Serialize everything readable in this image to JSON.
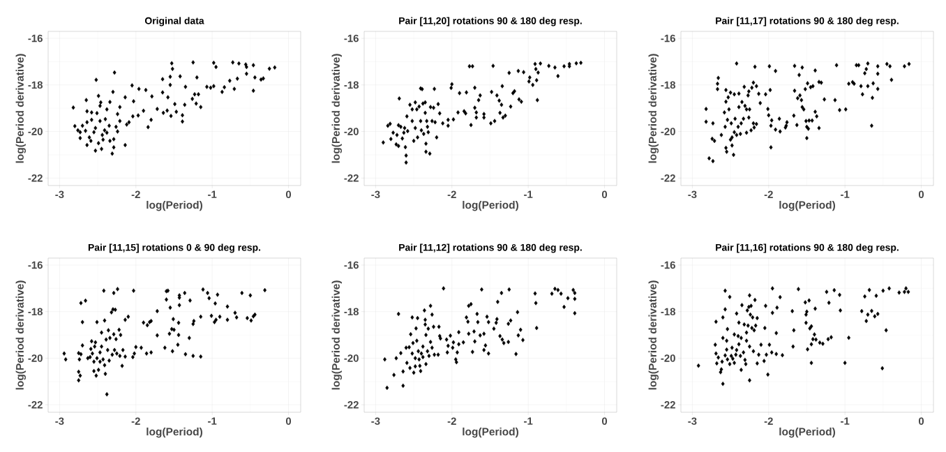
{
  "chart_data": [
    {
      "type": "scatter",
      "title": "Original data",
      "xlabel": "log(Period)",
      "ylabel": "log(Period derivative)",
      "color": "#000000",
      "marker": "diamond",
      "grid": true,
      "xlim": [
        -3.15,
        0.16
      ],
      "ylim": [
        -22.32,
        -15.7
      ],
      "xticks": [
        -3,
        -2,
        -1,
        0
      ],
      "yticks": [
        -22,
        -20,
        -18,
        -16
      ],
      "x": [
        -2.82,
        -2.8,
        -2.76,
        -2.73,
        -2.73,
        -2.7,
        -2.66,
        -2.65,
        -2.64,
        -2.64,
        -2.64,
        -2.61,
        -2.58,
        -2.58,
        -2.59,
        -2.55,
        -2.52,
        -2.51,
        -2.53,
        -2.53,
        -2.49,
        -2.49,
        -2.47,
        -2.46,
        -2.47,
        -2.45,
        -2.44,
        -2.43,
        -2.41,
        -2.4,
        -2.38,
        -2.38,
        -2.35,
        -2.34,
        -2.34,
        -2.31,
        -2.3,
        -2.29,
        -2.29,
        -2.28,
        -2.26,
        -2.24,
        -2.24,
        -2.21,
        -2.21,
        -2.14,
        -2.14,
        -2.12,
        -2.09,
        -2.05,
        -2.04,
        -2.03,
        -1.97,
        -1.96,
        -1.9,
        -1.87,
        -1.84,
        -1.8,
        -1.79,
        -1.72,
        -1.65,
        -1.65,
        -1.64,
        -1.59,
        -1.58,
        -1.55,
        -1.55,
        -1.54,
        -1.53,
        -1.52,
        -1.49,
        -1.47,
        -1.42,
        -1.39,
        -1.39,
        -1.36,
        -1.35,
        -1.26,
        -1.25,
        -1.23,
        -1.21,
        -1.2,
        -1.18,
        -1.15,
        -1.07,
        -1.02,
        -0.98,
        -0.98,
        -0.95,
        -0.87,
        -0.84,
        -0.77,
        -0.73,
        -0.71,
        -0.67,
        -0.65,
        -0.56,
        -0.55,
        -0.55,
        -0.46,
        -0.46,
        -0.44,
        -0.36,
        -0.33,
        -0.25,
        -0.18
      ],
      "values": [
        -18.97,
        -19.77,
        -19.95,
        -20.03,
        -20.28,
        -19.75,
        -19.97,
        -18.65,
        -19.13,
        -19.6,
        -20.58,
        -20.25,
        -19.18,
        -19.5,
        -20.4,
        -20.03,
        -17.78,
        -19.21,
        -19.85,
        -20.82,
        -18.47,
        -20.5,
        -18.9,
        -18.75,
        -19.55,
        -20.75,
        -20.15,
        -20.35,
        -19.95,
        -19.47,
        -20.05,
        -19.05,
        -19.75,
        -18.73,
        -20.4,
        -20.95,
        -18.3,
        -20.33,
        -20.68,
        -17.47,
        -19.8,
        -19.25,
        -20.0,
        -19.55,
        -18.95,
        -18.53,
        -20.58,
        -19.7,
        -19.6,
        -18.02,
        -19.35,
        -18.7,
        -19.31,
        -18.17,
        -19.11,
        -18.22,
        -19.81,
        -19.5,
        -18.49,
        -19.03,
        -17.75,
        -18.32,
        -19.2,
        -19.1,
        -18.53,
        -18.0,
        -17.65,
        -19.33,
        -17.07,
        -17.31,
        -18.82,
        -19.15,
        -17.63,
        -19.3,
        -19.57,
        -18.85,
        -18.08,
        -18.6,
        -17.03,
        -18.4,
        -18.8,
        -17.68,
        -18.4,
        -18.95,
        -18.08,
        -18.12,
        -18.05,
        -17.05,
        -17.23,
        -18.3,
        -18.1,
        -17.82,
        -17.03,
        -18.17,
        -17.73,
        -17.08,
        -17.12,
        -17.23,
        -17.52,
        -18.25,
        -17.15,
        -17.68,
        -17.77,
        -17.72,
        -17.3,
        -17.25
      ]
    },
    {
      "type": "scatter",
      "title": "Pair [11,20] rotations 90 & 180 deg resp.",
      "xlabel": "log(Period)",
      "ylabel": "log(Period derivative)",
      "color": "#000000",
      "marker": "diamond",
      "grid": true,
      "xlim": [
        -3.15,
        0.16
      ],
      "ylim": [
        -22.32,
        -15.7
      ],
      "xticks": [
        -3,
        -2,
        -1,
        0
      ],
      "yticks": [
        -22,
        -20,
        -18,
        -16
      ],
      "x": [
        -2.9,
        -2.84,
        -2.81,
        -2.8,
        -2.77,
        -2.73,
        -2.72,
        -2.7,
        -2.7,
        -2.69,
        -2.67,
        -2.65,
        -2.63,
        -2.62,
        -2.61,
        -2.6,
        -2.6,
        -2.59,
        -2.58,
        -2.55,
        -2.52,
        -2.52,
        -2.5,
        -2.48,
        -2.48,
        -2.46,
        -2.45,
        -2.43,
        -2.41,
        -2.41,
        -2.4,
        -2.39,
        -2.38,
        -2.37,
        -2.35,
        -2.35,
        -2.34,
        -2.34,
        -2.33,
        -2.32,
        -2.31,
        -2.29,
        -2.28,
        -2.26,
        -2.24,
        -2.23,
        -2.22,
        -2.2,
        -2.18,
        -2.16,
        -2.12,
        -2.05,
        -2.05,
        -2.01,
        -2.0,
        -1.98,
        -1.92,
        -1.9,
        -1.84,
        -1.82,
        -1.81,
        -1.77,
        -1.73,
        -1.75,
        -1.7,
        -1.7,
        -1.68,
        -1.68,
        -1.65,
        -1.63,
        -1.58,
        -1.58,
        -1.49,
        -1.48,
        -1.46,
        -1.44,
        -1.41,
        -1.38,
        -1.37,
        -1.35,
        -1.34,
        -1.33,
        -1.3,
        -1.25,
        -1.23,
        -1.2,
        -1.18,
        -1.13,
        -1.12,
        -1.09,
        -1.06,
        -0.99,
        -0.98,
        -0.94,
        -0.91,
        -0.9,
        -0.89,
        -0.88,
        -0.87,
        -0.84,
        -0.73,
        -0.65,
        -0.61,
        -0.53,
        -0.46,
        -0.46,
        -0.37,
        -0.31
      ],
      "values": [
        -20.47,
        -19.75,
        -19.67,
        -20.32,
        -20.05,
        -20.55,
        -20.15,
        -19.73,
        -20.62,
        -18.58,
        -19.8,
        -20.3,
        -20.05,
        -19.85,
        -20.67,
        -21.03,
        -21.33,
        -19.35,
        -19.98,
        -18.85,
        -19.05,
        -19.55,
        -20.4,
        -18.75,
        -19.85,
        -19.05,
        -20.25,
        -18.93,
        -18.15,
        -19.55,
        -19.95,
        -18.18,
        -18.8,
        -20.1,
        -18.75,
        -19.2,
        -20.87,
        -20.52,
        -19.55,
        -19.8,
        -20.03,
        -20.95,
        -18.95,
        -19.55,
        -18.98,
        -18.17,
        -19.6,
        -20.25,
        -18.82,
        -19.22,
        -19.65,
        -19.5,
        -19.75,
        -18.13,
        -17.97,
        -19.48,
        -19.18,
        -18.35,
        -19.13,
        -19.22,
        -18.32,
        -17.2,
        -17.2,
        -19.72,
        -18.12,
        -18.98,
        -19.4,
        -19.18,
        -18.65,
        -18.45,
        -19.25,
        -19.4,
        -19.65,
        -18.3,
        -17.18,
        -19.55,
        -18.45,
        -18.67,
        -19.2,
        -18.85,
        -18.05,
        -19.4,
        -19.32,
        -17.48,
        -18.93,
        -18.35,
        -18.27,
        -17.4,
        -18.62,
        -18.72,
        -17.45,
        -17.85,
        -17.68,
        -18.0,
        -17.1,
        -17.32,
        -17.8,
        -18.65,
        -17.47,
        -17.08,
        -17.18,
        -17.25,
        -17.62,
        -17.2,
        -17.1,
        -17.2,
        -17.07,
        -17.05
      ]
    },
    {
      "type": "scatter",
      "title": "Pair [11,17] rotations 90 & 180 deg resp.",
      "xlabel": "log(Period)",
      "ylabel": "log(Period derivative)",
      "color": "#000000",
      "marker": "diamond",
      "grid": true,
      "xlim": [
        -3.15,
        0.16
      ],
      "ylim": [
        -22.32,
        -15.7
      ],
      "xticks": [
        -3,
        -2,
        -1,
        0
      ],
      "yticks": [
        -22,
        -20,
        -18,
        -16
      ],
      "x": [
        -2.82,
        -2.82,
        -2.78,
        -2.74,
        -2.73,
        -2.73,
        -2.71,
        -2.67,
        -2.66,
        -2.67,
        -2.62,
        -2.58,
        -2.57,
        -2.56,
        -2.56,
        -2.56,
        -2.55,
        -2.54,
        -2.53,
        -2.52,
        -2.5,
        -2.49,
        -2.5,
        -2.48,
        -2.48,
        -2.46,
        -2.45,
        -2.45,
        -2.44,
        -2.42,
        -2.42,
        -2.4,
        -2.39,
        -2.39,
        -2.37,
        -2.36,
        -2.35,
        -2.33,
        -2.32,
        -2.31,
        -2.29,
        -2.29,
        -2.27,
        -2.26,
        -2.26,
        -2.25,
        -2.23,
        -2.22,
        -2.2,
        -2.2,
        -2.19,
        -2.18,
        -2.16,
        -2.16,
        -2.13,
        -2.11,
        -2.04,
        -2.01,
        -2.0,
        -1.99,
        -1.98,
        -1.97,
        -1.97,
        -1.96,
        -1.91,
        -1.91,
        -1.86,
        -1.85,
        -1.78,
        -1.77,
        -1.76,
        -1.67,
        -1.66,
        -1.66,
        -1.63,
        -1.62,
        -1.6,
        -1.59,
        -1.57,
        -1.56,
        -1.56,
        -1.54,
        -1.52,
        -1.51,
        -1.5,
        -1.5,
        -1.49,
        -1.48,
        -1.47,
        -1.45,
        -1.43,
        -1.42,
        -1.39,
        -1.39,
        -1.37,
        -1.34,
        -1.34,
        -1.31,
        -1.27,
        -1.13,
        -1.11,
        -1.07,
        -0.99,
        -0.95,
        -0.9,
        -0.88,
        -0.85,
        -0.82,
        -0.79,
        -0.77,
        -0.74,
        -0.72,
        -0.7,
        -0.7,
        -0.65,
        -0.64,
        -0.63,
        -0.57,
        -0.57,
        -0.57,
        -0.45,
        -0.41,
        -0.39,
        -0.22,
        -0.16
      ],
      "values": [
        -19.03,
        -19.58,
        -21.15,
        -20.31,
        -19.65,
        -21.27,
        -20.4,
        -17.95,
        -17.7,
        -18.18,
        -20.15,
        -19.18,
        -19.8,
        -18.22,
        -18.72,
        -20.7,
        -20.87,
        -19.5,
        -18.53,
        -19.05,
        -18.33,
        -19.65,
        -20.35,
        -20.25,
        -20.6,
        -21.0,
        -18.4,
        -20.03,
        -19.45,
        -20.15,
        -17.08,
        -19.8,
        -18.37,
        -18.95,
        -20.1,
        -19.65,
        -18.73,
        -19.45,
        -18.08,
        -18.9,
        -20.05,
        -19.05,
        -18.45,
        -18.28,
        -19.4,
        -19.05,
        -19.95,
        -18.12,
        -19.65,
        -17.9,
        -19.83,
        -17.22,
        -19.68,
        -18.05,
        -18.38,
        -18.78,
        -18.4,
        -19.03,
        -19.3,
        -17.2,
        -18.22,
        -19.75,
        -20.68,
        -19.52,
        -17.4,
        -19.92,
        -19.45,
        -20.0,
        -19.83,
        -19.75,
        -19.6,
        -19.32,
        -17.18,
        -18.25,
        -19.72,
        -18.57,
        -17.57,
        -18.45,
        -18.65,
        -18.95,
        -17.25,
        -19.05,
        -18.18,
        -19.55,
        -20.28,
        -19.8,
        -17.93,
        -19.88,
        -19.53,
        -18.1,
        -19.53,
        -18.05,
        -19.15,
        -17.38,
        -19.35,
        -19.85,
        -17.87,
        -17.9,
        -18.62,
        -18.65,
        -17.15,
        -19.08,
        -19.05,
        -17.95,
        -17.88,
        -17.95,
        -17.15,
        -17.15,
        -18.05,
        -18.4,
        -17.5,
        -17.32,
        -17.08,
        -18.05,
        -19.75,
        -18.55,
        -17.93,
        -17.2,
        -17.52,
        -18.17,
        -17.1,
        -17.2,
        -17.78,
        -17.2,
        -17.1
      ]
    },
    {
      "type": "scatter",
      "title": "Pair [11,15] rotations 0 & 90 deg resp.",
      "xlabel": "log(Period)",
      "ylabel": "log(Period derivative)",
      "color": "#000000",
      "marker": "diamond",
      "grid": true,
      "xlim": [
        -3.15,
        0.16
      ],
      "ylim": [
        -22.32,
        -15.7
      ],
      "xticks": [
        -3,
        -2,
        -1,
        0
      ],
      "yticks": [
        -22,
        -20,
        -18,
        -16
      ],
      "x": [
        -2.94,
        -2.92,
        -2.75,
        -2.75,
        -2.75,
        -2.74,
        -2.73,
        -2.72,
        -2.72,
        -2.7,
        -2.7,
        -2.66,
        -2.63,
        -2.6,
        -2.59,
        -2.58,
        -2.57,
        -2.55,
        -2.55,
        -2.54,
        -2.53,
        -2.52,
        -2.51,
        -2.51,
        -2.49,
        -2.47,
        -2.47,
        -2.45,
        -2.45,
        -2.43,
        -2.42,
        -2.41,
        -2.41,
        -2.4,
        -2.39,
        -2.38,
        -2.37,
        -2.36,
        -2.35,
        -2.34,
        -2.32,
        -2.31,
        -2.3,
        -2.29,
        -2.29,
        -2.28,
        -2.27,
        -2.26,
        -2.25,
        -2.24,
        -2.22,
        -2.21,
        -2.2,
        -2.18,
        -2.17,
        -2.14,
        -2.14,
        -2.1,
        -2.04,
        -2.03,
        -2.02,
        -2.0,
        -1.93,
        -1.9,
        -1.86,
        -1.85,
        -1.82,
        -1.8,
        -1.8,
        -1.72,
        -1.72,
        -1.62,
        -1.6,
        -1.58,
        -1.6,
        -1.56,
        -1.55,
        -1.53,
        -1.52,
        -1.51,
        -1.5,
        -1.45,
        -1.44,
        -1.44,
        -1.43,
        -1.43,
        -1.43,
        -1.36,
        -1.35,
        -1.3,
        -1.29,
        -1.25,
        -1.25,
        -1.24,
        -1.15,
        -1.15,
        -1.12,
        -1.06,
        -1.04,
        -1.01,
        -0.97,
        -0.96,
        -0.95,
        -0.93,
        -0.9,
        -0.8,
        -0.8,
        -0.7,
        -0.68,
        -0.61,
        -0.54,
        -0.5,
        -0.49,
        -0.46,
        -0.44,
        -0.31
      ],
      "values": [
        -19.8,
        -20.05,
        -19.78,
        -20.58,
        -20.95,
        -20.05,
        -20.75,
        -17.63,
        -19.83,
        -19.45,
        -18.45,
        -17.53,
        -20.0,
        -19.95,
        -19.6,
        -19.27,
        -19.8,
        -20.15,
        -20.55,
        -19.5,
        -19.32,
        -20.75,
        -18.45,
        -20.0,
        -20.5,
        -19.75,
        -20.15,
        -18.9,
        -19.5,
        -20.05,
        -17.1,
        -20.3,
        -18.38,
        -20.67,
        -19.2,
        -21.55,
        -19.65,
        -18.8,
        -20.1,
        -19.13,
        -18.03,
        -19.85,
        -17.9,
        -18.97,
        -17.2,
        -19.65,
        -17.92,
        -19.18,
        -19.8,
        -17.03,
        -18.78,
        -19.9,
        -19.0,
        -20.33,
        -19.65,
        -18.35,
        -19.93,
        -18.22,
        -19.95,
        -17.1,
        -19.8,
        -19.52,
        -19.55,
        -18.47,
        -19.8,
        -18.58,
        -18.45,
        -18.4,
        -19.75,
        -17.98,
        -19.02,
        -19.55,
        -17.12,
        -17.1,
        -17.48,
        -18.95,
        -17.83,
        -18.75,
        -19.7,
        -18.32,
        -18.78,
        -19.42,
        -19.0,
        -18.48,
        -17.72,
        -17.3,
        -17.4,
        -17.2,
        -19.83,
        -19.13,
        -17.52,
        -19.9,
        -18.53,
        -18.4,
        -19.93,
        -18.22,
        -17.05,
        -17.2,
        -17.42,
        -18.18,
        -18.45,
        -17.65,
        -18.35,
        -17.27,
        -18.22,
        -17.78,
        -18.35,
        -18.05,
        -18.25,
        -17.2,
        -18.28,
        -17.3,
        -18.38,
        -18.2,
        -18.13,
        -17.08
      ]
    },
    {
      "type": "scatter",
      "title": "Pair [11,12] rotations 90 & 180 deg resp.",
      "xlabel": "log(Period)",
      "ylabel": "log(Period derivative)",
      "color": "#000000",
      "marker": "diamond",
      "grid": true,
      "xlim": [
        -3.15,
        0.16
      ],
      "ylim": [
        -22.32,
        -15.7
      ],
      "xticks": [
        -3,
        -2,
        -1,
        0
      ],
      "yticks": [
        -22,
        -20,
        -18,
        -16
      ],
      "x": [
        -2.88,
        -2.85,
        -2.76,
        -2.73,
        -2.7,
        -2.67,
        -2.64,
        -2.64,
        -2.6,
        -2.59,
        -2.56,
        -2.55,
        -2.54,
        -2.52,
        -2.52,
        -2.51,
        -2.5,
        -2.48,
        -2.48,
        -2.47,
        -2.46,
        -2.45,
        -2.44,
        -2.43,
        -2.42,
        -2.41,
        -2.4,
        -2.38,
        -2.38,
        -2.36,
        -2.35,
        -2.35,
        -2.34,
        -2.34,
        -2.32,
        -2.31,
        -2.3,
        -2.28,
        -2.28,
        -2.26,
        -2.26,
        -2.24,
        -2.23,
        -2.18,
        -2.17,
        -2.16,
        -2.15,
        -2.11,
        -2.07,
        -2.06,
        -2.05,
        -2.02,
        -1.99,
        -1.98,
        -1.95,
        -1.94,
        -1.93,
        -1.91,
        -1.91,
        -1.85,
        -1.81,
        -1.79,
        -1.78,
        -1.78,
        -1.75,
        -1.73,
        -1.71,
        -1.7,
        -1.67,
        -1.66,
        -1.63,
        -1.61,
        -1.58,
        -1.58,
        -1.56,
        -1.54,
        -1.52,
        -1.52,
        -1.45,
        -1.42,
        -1.41,
        -1.4,
        -1.37,
        -1.35,
        -1.34,
        -1.32,
        -1.26,
        -1.26,
        -1.25,
        -1.23,
        -1.16,
        -1.14,
        -1.13,
        -1.1,
        -1.07,
        -0.91,
        -0.9,
        -0.89,
        -0.69,
        -0.65,
        -0.61,
        -0.57,
        -0.53,
        -0.48,
        -0.41,
        -0.39,
        -0.39,
        -0.39
      ],
      "values": [
        -20.05,
        -21.27,
        -20.72,
        -20.0,
        -18.1,
        -19.78,
        -20.57,
        -21.18,
        -19.55,
        -20.2,
        -19.53,
        -20.42,
        -18.97,
        -18.25,
        -19.8,
        -19.35,
        -20.62,
        -20.35,
        -20.0,
        -18.72,
        -19.25,
        -18.28,
        -19.7,
        -20.05,
        -20.33,
        -20.55,
        -19.8,
        -19.5,
        -19.95,
        -17.95,
        -18.35,
        -18.55,
        -19.0,
        -20.25,
        -19.7,
        -18.73,
        -19.9,
        -17.75,
        -19.3,
        -18.13,
        -19.55,
        -18.65,
        -19.85,
        -19.85,
        -18.65,
        -19.05,
        -19.15,
        -17.0,
        -19.2,
        -19.75,
        -19.47,
        -19.03,
        -19.55,
        -19.32,
        -20.05,
        -20.17,
        -19.75,
        -19.4,
        -18.88,
        -19.32,
        -18.25,
        -18.43,
        -18.95,
        -17.75,
        -17.68,
        -19.73,
        -18.85,
        -19.28,
        -18.1,
        -18.45,
        -19.02,
        -17.05,
        -19.65,
        -18.95,
        -19.45,
        -18.22,
        -19.8,
        -18.45,
        -18.73,
        -18.48,
        -18.32,
        -17.58,
        -19.05,
        -17.2,
        -19.2,
        -19.35,
        -18.52,
        -19.3,
        -17.05,
        -18.38,
        -19.82,
        -18.02,
        -19.02,
        -18.78,
        -19.22,
        -17.22,
        -17.63,
        -18.7,
        -17.23,
        -17.02,
        -17.07,
        -17.23,
        -17.8,
        -17.42,
        -17.07,
        -17.2,
        -18.07,
        -17.45
      ]
    },
    {
      "type": "scatter",
      "title": "Pair [11,16] rotations 90 & 180 deg resp.",
      "xlabel": "log(Period)",
      "ylabel": "log(Period derivative)",
      "color": "#000000",
      "marker": "diamond",
      "grid": true,
      "xlim": [
        -3.15,
        0.16
      ],
      "ylim": [
        -22.32,
        -15.7
      ],
      "xticks": [
        -3,
        -2,
        -1,
        0
      ],
      "yticks": [
        -22,
        -20,
        -18,
        -16
      ],
      "x": [
        -2.92,
        -2.7,
        -2.69,
        -2.69,
        -2.68,
        -2.66,
        -2.63,
        -2.62,
        -2.61,
        -2.6,
        -2.6,
        -2.6,
        -2.57,
        -2.57,
        -2.57,
        -2.55,
        -2.55,
        -2.54,
        -2.54,
        -2.51,
        -2.51,
        -2.49,
        -2.48,
        -2.47,
        -2.45,
        -2.45,
        -2.43,
        -2.42,
        -2.42,
        -2.4,
        -2.39,
        -2.39,
        -2.37,
        -2.36,
        -2.36,
        -2.35,
        -2.33,
        -2.32,
        -2.31,
        -2.3,
        -2.29,
        -2.29,
        -2.28,
        -2.27,
        -2.26,
        -2.25,
        -2.25,
        -2.25,
        -2.24,
        -2.23,
        -2.22,
        -2.21,
        -2.2,
        -2.19,
        -2.18,
        -2.17,
        -2.15,
        -2.15,
        -2.13,
        -2.1,
        -2.06,
        -2.05,
        -2.04,
        -2.03,
        -2.01,
        -1.99,
        -1.96,
        -1.95,
        -1.95,
        -1.9,
        -1.9,
        -1.89,
        -1.85,
        -1.82,
        -1.69,
        -1.68,
        -1.67,
        -1.61,
        -1.52,
        -1.51,
        -1.51,
        -1.5,
        -1.49,
        -1.47,
        -1.46,
        -1.44,
        -1.44,
        -1.44,
        -1.42,
        -1.4,
        -1.39,
        -1.38,
        -1.33,
        -1.29,
        -1.24,
        -1.22,
        -1.21,
        -1.18,
        -1.14,
        -1.07,
        -1.06,
        -1.0,
        -0.95,
        -0.78,
        -0.74,
        -0.72,
        -0.7,
        -0.68,
        -0.65,
        -0.61,
        -0.59,
        -0.57,
        -0.51,
        -0.5,
        -0.46,
        -0.42,
        -0.29,
        -0.22,
        -0.2,
        -0.17
      ],
      "values": [
        -20.32,
        -19.42,
        -19.8,
        -18.43,
        -20.22,
        -19.97,
        -20.6,
        -20.48,
        -20.15,
        -21.1,
        -18.25,
        -19.13,
        -17.9,
        -17.1,
        -19.88,
        -19.63,
        -19.25,
        -18.75,
        -20.05,
        -17.37,
        -20.25,
        -19.9,
        -19.55,
        -20.02,
        -18.98,
        -20.2,
        -19.85,
        -18.08,
        -19.65,
        -19.05,
        -18.47,
        -19.4,
        -19.9,
        -20.5,
        -19.13,
        -17.72,
        -19.75,
        -18.55,
        -20.07,
        -20.25,
        -19.25,
        -18.9,
        -17.95,
        -18.6,
        -17.8,
        -17.3,
        -20.95,
        -19.5,
        -18.13,
        -17.75,
        -18.7,
        -18.25,
        -19.7,
        -18.8,
        -17.5,
        -18.6,
        -20.22,
        -18.28,
        -19.85,
        -19.42,
        -20.12,
        -18.7,
        -17.75,
        -19.85,
        -20.7,
        -19.42,
        -19.75,
        -18.05,
        -17.0,
        -18.92,
        -19.82,
        -17.83,
        -17.38,
        -19.87,
        -17.98,
        -19.5,
        -18.8,
        -17.03,
        -17.6,
        -18.13,
        -18.48,
        -18.0,
        -19.62,
        -17.52,
        -18.72,
        -18.63,
        -20.2,
        -19.4,
        -19.18,
        -18.98,
        -17.87,
        -19.2,
        -19.33,
        -19.38,
        -17.15,
        -19.18,
        -17.62,
        -19.1,
        -17.08,
        -17.28,
        -17.95,
        -20.2,
        -19.12,
        -17.98,
        -17.35,
        -18.4,
        -18.13,
        -17.07,
        -17.97,
        -18.2,
        -17.32,
        -18.1,
        -20.43,
        -17.1,
        -18.8,
        -17.0,
        -17.18,
        -17.15,
        -17.0,
        -17.15
      ]
    }
  ]
}
